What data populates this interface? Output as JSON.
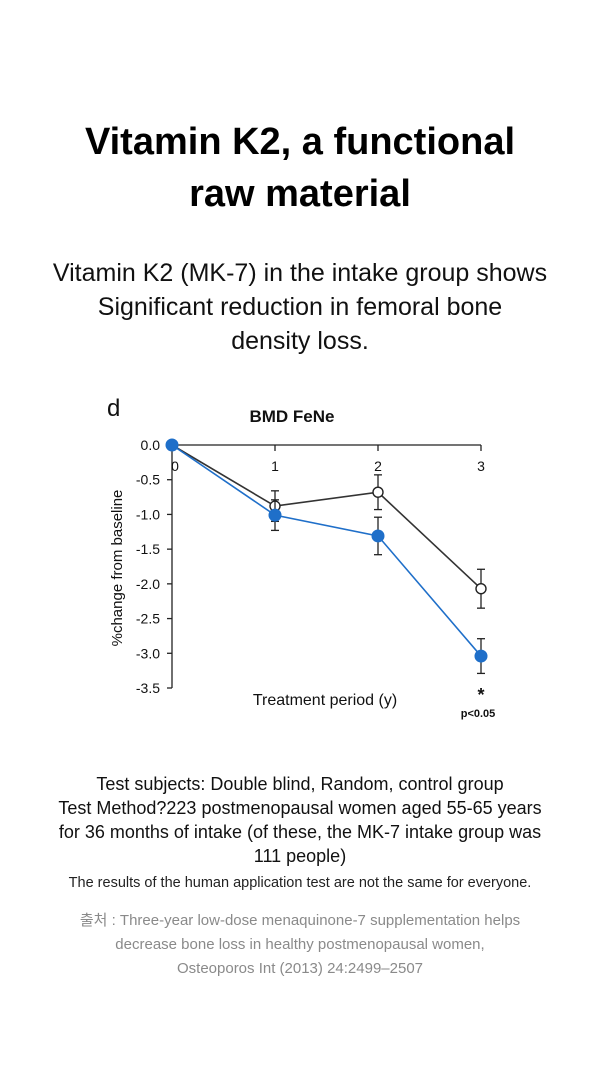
{
  "header": {
    "title_lines": [
      "Vitamin K2, a functional",
      "raw material"
    ],
    "subtitle_lines": [
      "Vitamin K2 (MK-7) in the intake group shows",
      "Significant reduction in femoral bone",
      "density loss."
    ]
  },
  "chart_data": {
    "type": "line",
    "panel_label": "d",
    "title": "BMD FeNe",
    "xlabel": "Treatment period (y)",
    "ylabel": "%change from baseline",
    "x": [
      0,
      1,
      2,
      3
    ],
    "x_tick_labels": [
      "0",
      "1",
      "2",
      "3"
    ],
    "y_ticks": [
      0.0,
      -0.5,
      -1.0,
      -1.5,
      -2.0,
      -2.5,
      -3.0,
      -3.5
    ],
    "y_tick_labels": [
      "0.0",
      "-0.5",
      "-1.0",
      "-1.5",
      "-2.0",
      "-2.5",
      "-3.0",
      "-3.5"
    ],
    "ylim": [
      -3.5,
      0.0
    ],
    "xlim": [
      0,
      3
    ],
    "grid": false,
    "series": [
      {
        "values": [
          0.0,
          -0.88,
          -0.68,
          -2.07
        ],
        "error": [
          0.0,
          0.22,
          0.25,
          0.28
        ],
        "marker": "open-circle",
        "color": "#333333"
      },
      {
        "values": [
          0.0,
          -1.01,
          -1.31,
          -3.04
        ],
        "error": [
          0.0,
          0.22,
          0.27,
          0.25
        ],
        "marker": "filled-circle",
        "color": "#1f6fc9"
      }
    ],
    "annotations": [
      {
        "text": "*",
        "x": 3
      },
      {
        "text": "p<0.05",
        "x": 3
      }
    ]
  },
  "info": {
    "lines": [
      "Test subjects: Double blind, Random, control group",
      "Test Method?223 postmenopausal women aged 55-65 years",
      "for 36 months of intake (of these, the MK-7 intake group was",
      "111 people)"
    ],
    "disclaimer": "The results of the human application test are not the same for everyone.",
    "source_lines": [
      "출처 : Three-year low-dose menaquinone-7 supplementation helps",
      "decrease bone loss in healthy postmenopausal women,",
      "Osteoporos Int (2013) 24:2499–2507"
    ]
  }
}
